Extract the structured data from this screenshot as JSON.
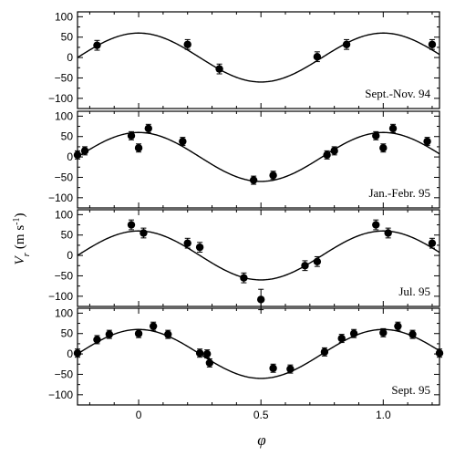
{
  "chart_data": {
    "type": "scatter",
    "xlabel": "φ",
    "ylabel": "V_r (m s^-1)",
    "ylabel_parts": {
      "main": "V",
      "sub": "r",
      "units": "(m s",
      "sup": "-1",
      "close": ")"
    },
    "xlim": [
      -0.25,
      1.23
    ],
    "xticks": [
      0,
      0.5,
      1.0
    ],
    "xtick_labels": [
      "0",
      "0.5",
      "1.0"
    ],
    "ylim": [
      -125,
      112
    ],
    "yticks": [
      100,
      50,
      0,
      -50,
      -100
    ],
    "ytick_labels": [
      "100",
      "50",
      "0",
      "−50",
      "−100"
    ],
    "model": {
      "amplitude": 60,
      "form": "60*cos(2*pi*phi)"
    },
    "panels": [
      {
        "label": "Sept.-Nov. 94",
        "points": [
          {
            "x": -0.17,
            "y": 30,
            "err": 12
          },
          {
            "x": 0.2,
            "y": 32,
            "err": 12
          },
          {
            "x": 0.33,
            "y": -28,
            "err": 12
          },
          {
            "x": 0.73,
            "y": 2,
            "err": 12
          },
          {
            "x": 0.85,
            "y": 32,
            "err": 12
          },
          {
            "x": 1.2,
            "y": 32,
            "err": 12
          }
        ]
      },
      {
        "label": "Jan.-Febr. 95",
        "points": [
          {
            "x": -0.25,
            "y": 5,
            "err": 10
          },
          {
            "x": -0.22,
            "y": 15,
            "err": 10
          },
          {
            "x": -0.03,
            "y": 52,
            "err": 10
          },
          {
            "x": 0.0,
            "y": 22,
            "err": 10
          },
          {
            "x": 0.04,
            "y": 70,
            "err": 10
          },
          {
            "x": 0.18,
            "y": 38,
            "err": 10
          },
          {
            "x": 0.47,
            "y": -57,
            "err": 10
          },
          {
            "x": 0.55,
            "y": -45,
            "err": 10
          },
          {
            "x": 0.77,
            "y": 5,
            "err": 10
          },
          {
            "x": 0.8,
            "y": 15,
            "err": 10
          },
          {
            "x": 0.97,
            "y": 52,
            "err": 10
          },
          {
            "x": 1.0,
            "y": 22,
            "err": 10
          },
          {
            "x": 1.04,
            "y": 70,
            "err": 10
          },
          {
            "x": 1.18,
            "y": 38,
            "err": 10
          }
        ]
      },
      {
        "label": "Jul. 95",
        "points": [
          {
            "x": -0.03,
            "y": 75,
            "err": 12
          },
          {
            "x": 0.02,
            "y": 55,
            "err": 12
          },
          {
            "x": 0.2,
            "y": 30,
            "err": 12
          },
          {
            "x": 0.25,
            "y": 20,
            "err": 12
          },
          {
            "x": 0.43,
            "y": -55,
            "err": 12
          },
          {
            "x": 0.5,
            "y": -108,
            "err": 25
          },
          {
            "x": 0.68,
            "y": -25,
            "err": 12
          },
          {
            "x": 0.73,
            "y": -15,
            "err": 12
          },
          {
            "x": 0.97,
            "y": 75,
            "err": 12
          },
          {
            "x": 1.02,
            "y": 55,
            "err": 12
          },
          {
            "x": 1.2,
            "y": 30,
            "err": 12
          }
        ]
      },
      {
        "label": "Sept. 95",
        "points": [
          {
            "x": -0.25,
            "y": 2,
            "err": 10
          },
          {
            "x": -0.17,
            "y": 35,
            "err": 10
          },
          {
            "x": -0.12,
            "y": 48,
            "err": 10
          },
          {
            "x": 0.0,
            "y": 50,
            "err": 10
          },
          {
            "x": 0.06,
            "y": 68,
            "err": 10
          },
          {
            "x": 0.12,
            "y": 48,
            "err": 10
          },
          {
            "x": 0.25,
            "y": 2,
            "err": 10
          },
          {
            "x": 0.28,
            "y": 0,
            "err": 10
          },
          {
            "x": 0.29,
            "y": -22,
            "err": 10
          },
          {
            "x": 0.55,
            "y": -35,
            "err": 10
          },
          {
            "x": 0.62,
            "y": -37,
            "err": 10
          },
          {
            "x": 0.76,
            "y": 5,
            "err": 10
          },
          {
            "x": 0.83,
            "y": 38,
            "err": 10
          },
          {
            "x": 0.88,
            "y": 50,
            "err": 10
          },
          {
            "x": 1.0,
            "y": 52,
            "err": 10
          },
          {
            "x": 1.06,
            "y": 68,
            "err": 10
          },
          {
            "x": 1.12,
            "y": 48,
            "err": 10
          },
          {
            "x": 1.23,
            "y": 2,
            "err": 10
          }
        ]
      }
    ]
  }
}
